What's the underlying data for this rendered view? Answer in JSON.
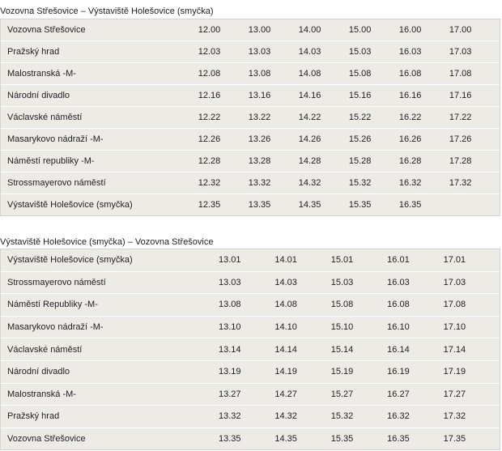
{
  "sections": [
    {
      "title": "Vozovna Střešovice – Výstaviště Holešovice (smyčka)",
      "rows": [
        {
          "stop": "Vozovna Střešovice",
          "times": [
            "12.00",
            "13.00",
            "14.00",
            "15.00",
            "16.00",
            "17.00"
          ]
        },
        {
          "stop": "Pražský hrad",
          "times": [
            "12.03",
            "13.03",
            "14.03",
            "15.03",
            "16.03",
            "17.03"
          ]
        },
        {
          "stop": "Malostranská -M-",
          "times": [
            "12.08",
            "13.08",
            "14.08",
            "15.08",
            "16.08",
            "17.08"
          ]
        },
        {
          "stop": "Národní divadlo",
          "times": [
            "12.16",
            "13.16",
            "14.16",
            "15.16",
            "16.16",
            "17.16"
          ]
        },
        {
          "stop": "Václavské náměstí",
          "times": [
            "12.22",
            "13.22",
            "14.22",
            "15.22",
            "16.22",
            "17.22"
          ]
        },
        {
          "stop": "Masarykovo nádraží -M-",
          "times": [
            "12.26",
            "13.26",
            "14.26",
            "15.26",
            "16.26",
            "17.26"
          ]
        },
        {
          "stop": "Náměstí republiky -M-",
          "times": [
            "12.28",
            "13.28",
            "14.28",
            "15.28",
            "16.28",
            "17.28"
          ]
        },
        {
          "stop": "Strossmayerovo náměstí",
          "times": [
            "12.32",
            "13.32",
            "14.32",
            "15.32",
            "16.32",
            "17.32"
          ]
        },
        {
          "stop": "Výstaviště Holešovice (smyčka)",
          "times": [
            "12.35",
            "13.35",
            "14.35",
            "15.35",
            "16.35",
            ""
          ]
        }
      ]
    },
    {
      "title": "Výstaviště Holešovice (smyčka) – Vozovna Střešovice",
      "rows": [
        {
          "stop": "Výstaviště Holešovice (smyčka)",
          "times": [
            "13.01",
            "14.01",
            "15.01",
            "16.01",
            "17.01"
          ]
        },
        {
          "stop": "Strossmayerovo náměstí",
          "times": [
            "13.03",
            "14.03",
            "15.03",
            "16.03",
            "17.03"
          ]
        },
        {
          "stop": "Náměstí Republiky -M-",
          "times": [
            "13.08",
            "14.08",
            "15.08",
            "16.08",
            "17.08"
          ]
        },
        {
          "stop": "Masarykovo nádraží -M-",
          "times": [
            "13.10",
            "14.10",
            "15.10",
            "16.10",
            "17.10"
          ]
        },
        {
          "stop": "Václavské náměstí",
          "times": [
            "13.14",
            "14.14",
            "15.14",
            "16.14",
            "17.14"
          ]
        },
        {
          "stop": "Národní divadlo",
          "times": [
            "13.19",
            "14.19",
            "15.19",
            "16.19",
            "17.19"
          ]
        },
        {
          "stop": "Malostranská -M-",
          "times": [
            "13.27",
            "14.27",
            "15.27",
            "16.27",
            "17.27"
          ]
        },
        {
          "stop": "Pražský hrad",
          "times": [
            "13.32",
            "14.32",
            "15.32",
            "16.32",
            "17.32"
          ]
        },
        {
          "stop": "Vozovna Střešovice",
          "times": [
            "13.35",
            "14.35",
            "15.35",
            "16.35",
            "17.35"
          ]
        }
      ]
    }
  ]
}
